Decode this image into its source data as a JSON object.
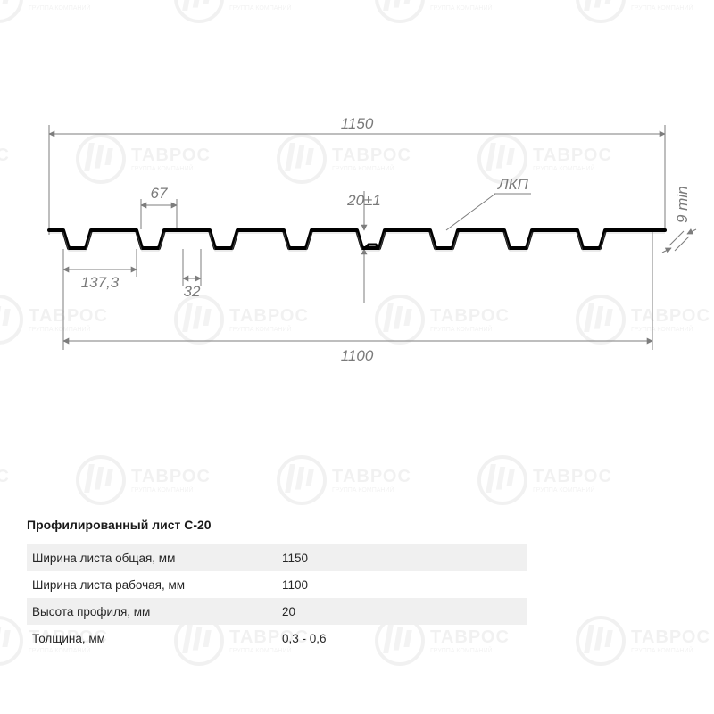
{
  "watermark": {
    "brand": "ТАВРОС",
    "sub": "ГРУППА КОМПАНИЙ"
  },
  "diagram": {
    "scale_note": "All positions in SVG user units; drawing area maps 1150mm full width to drawn profile extent.",
    "full_width_label": "1150",
    "cover_width_label": "1100",
    "height_label": "20±1",
    "coating_label": "ЛКП",
    "thickness_label": "9 min",
    "pitch_label": "137,3",
    "rib_top_label": "67",
    "trough_bottom_label": "32",
    "line_color": "#7d7d7d",
    "line_width": 1,
    "profile_color": "#000000",
    "profile_width": 4,
    "text_color": "#7a7a7a",
    "bg": "#ffffff"
  },
  "spec": {
    "title": "Профилированный лист С-20",
    "rows": [
      {
        "k": "Ширина листа общая, мм",
        "v": "1150"
      },
      {
        "k": "Ширина листа рабочая, мм",
        "v": "1100"
      },
      {
        "k": "Высота профиля, мм",
        "v": "20"
      },
      {
        "k": "Толщина, мм",
        "v": "0,3 - 0,6"
      }
    ]
  }
}
